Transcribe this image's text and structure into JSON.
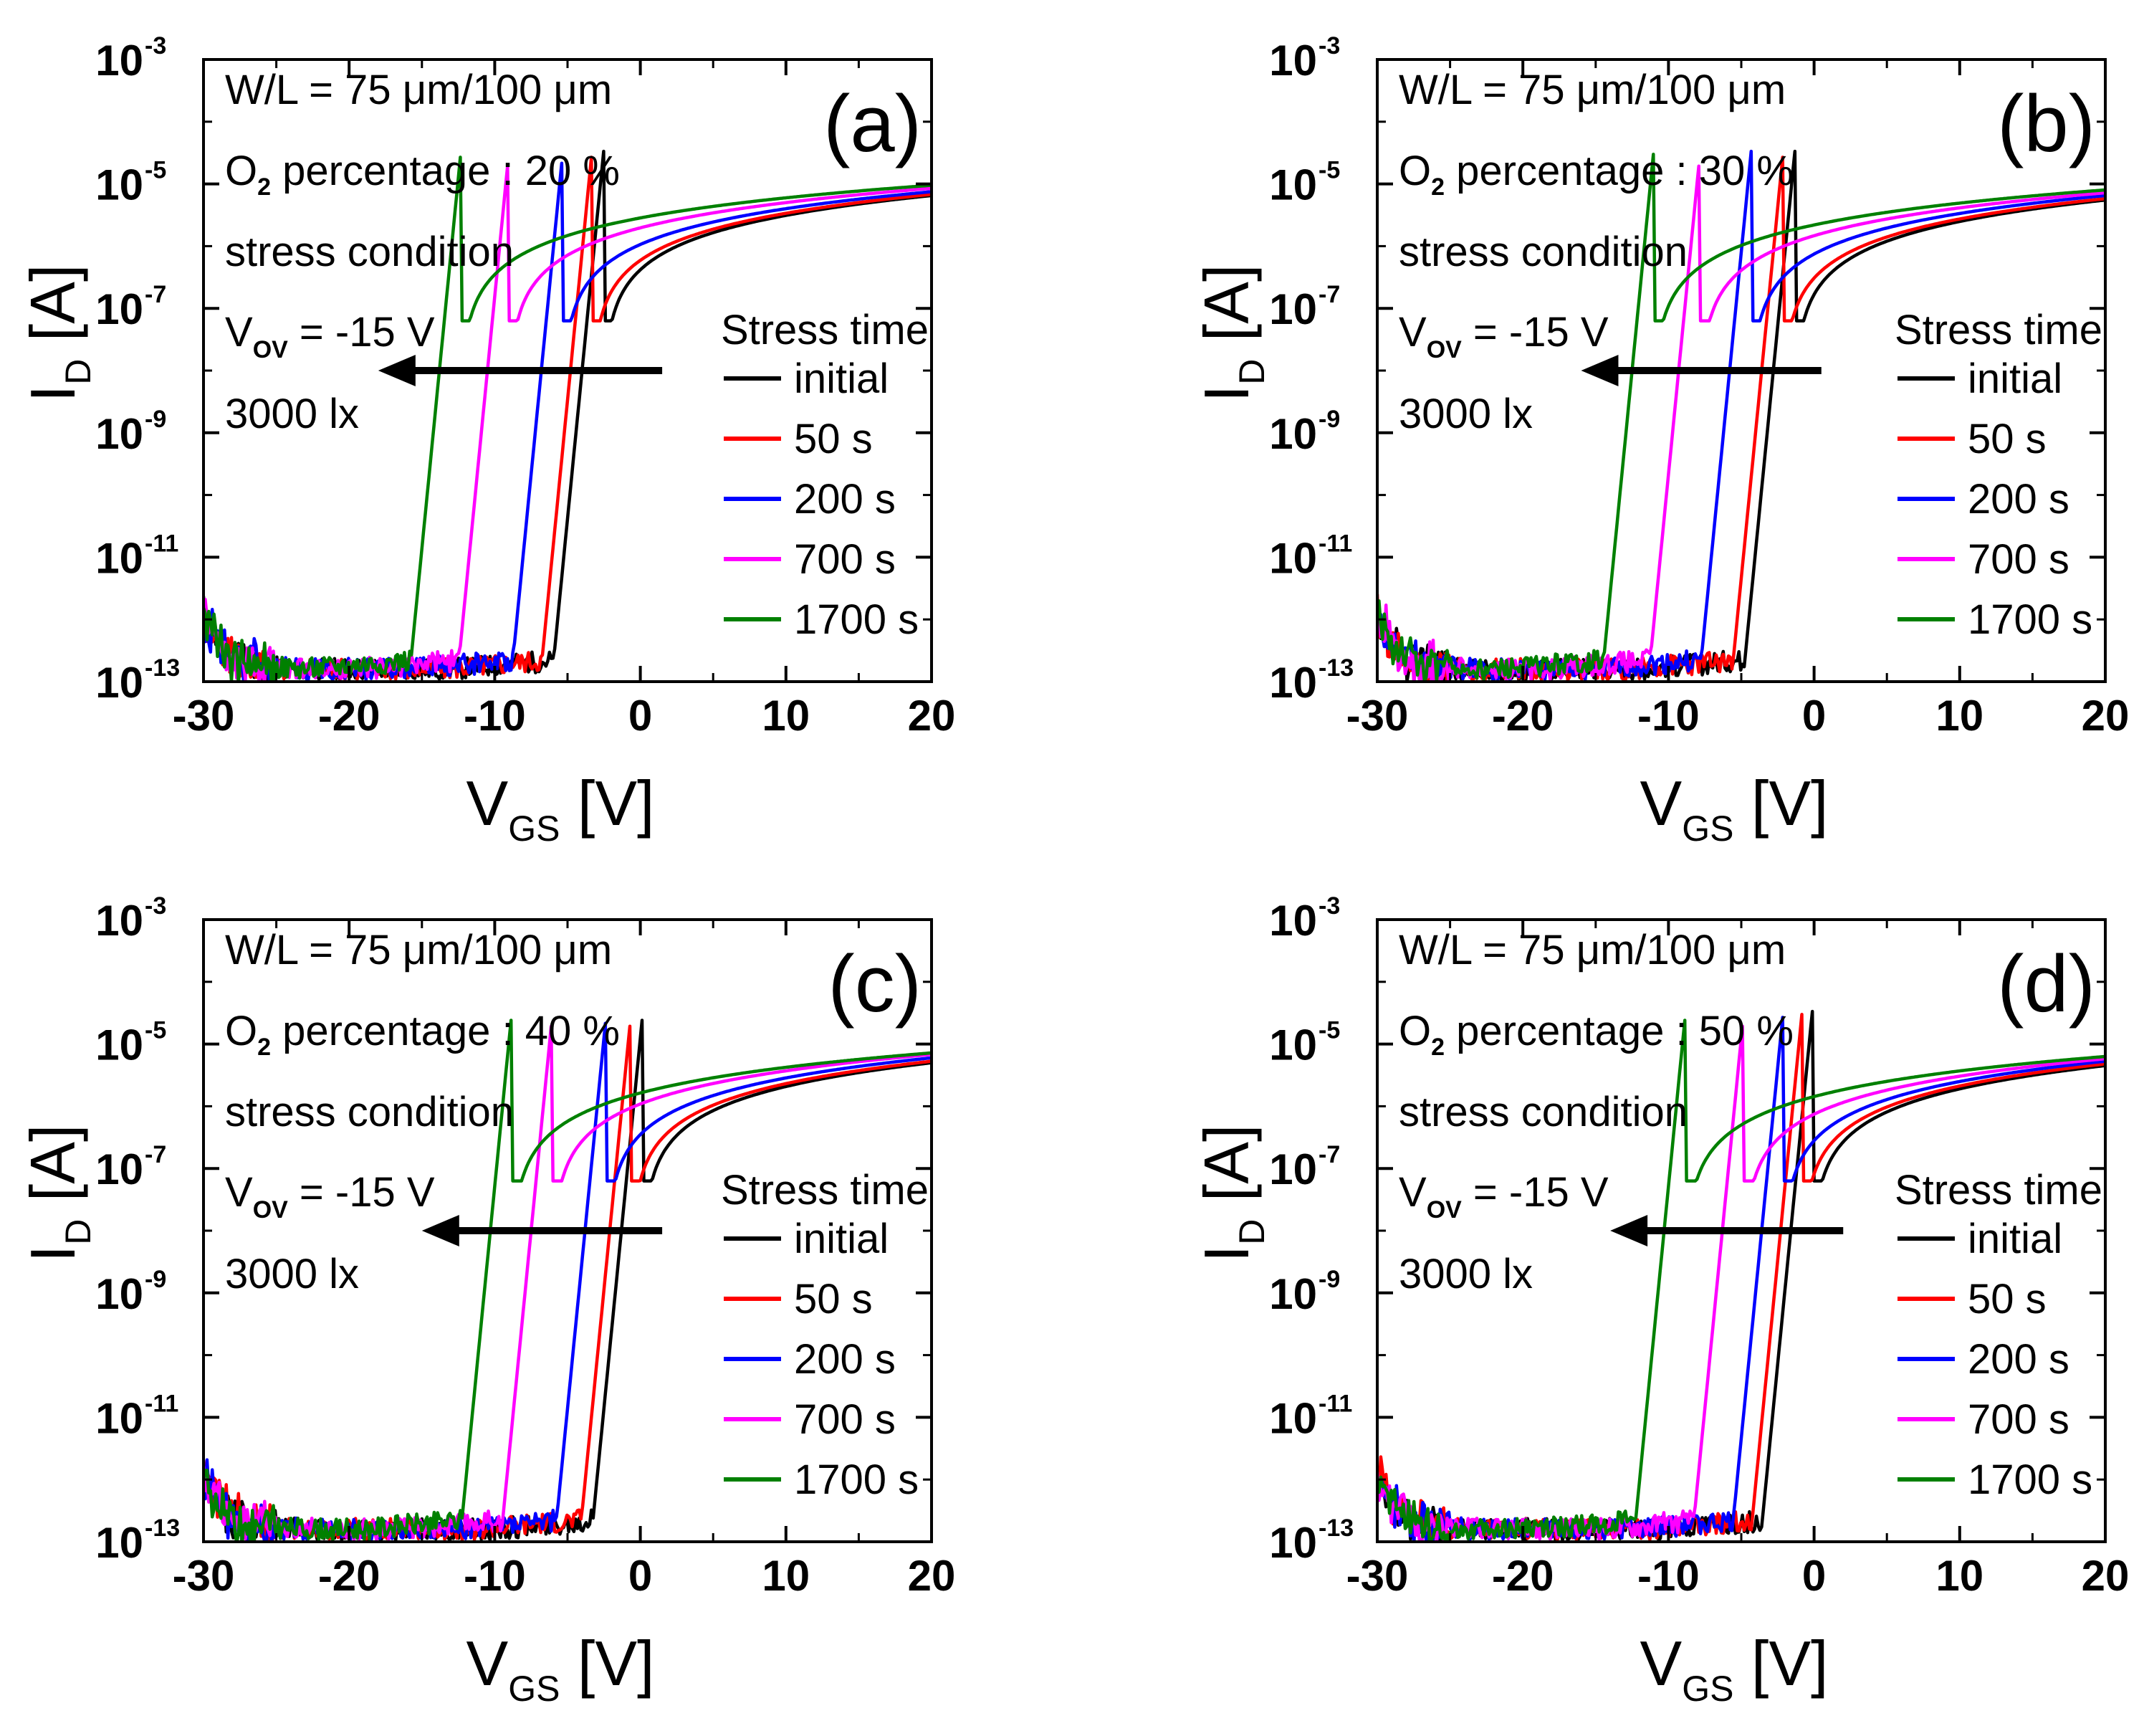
{
  "figure": {
    "panels": [
      {
        "label": "(a)",
        "wl": "W/L = 75 μm/100 μm",
        "o2_prefix": "O",
        "o2_sub": "2",
        "o2_rest": " percentage : 20 %",
        "stress": "stress condition",
        "vov_prefix": "V",
        "vov_sub": "OV",
        "vov_rest": " = -15 V",
        "lux": "3000 lx",
        "legend_title": "Stress time",
        "xlabel_main": "V",
        "xlabel_sub": "GS",
        "xlabel_unit": " [V]",
        "ylabel_main": "I",
        "ylabel_sub": "D",
        "ylabel_unit": " [A]"
      },
      {
        "label": "(b)",
        "wl": "W/L = 75 μm/100 μm",
        "o2_prefix": "O",
        "o2_sub": "2",
        "o2_rest": " percentage : 30 %",
        "stress": "stress condition",
        "vov_prefix": "V",
        "vov_sub": "OV",
        "vov_rest": " = -15 V",
        "lux": "3000 lx",
        "legend_title": "Stress time",
        "xlabel_main": "V",
        "xlabel_sub": "GS",
        "xlabel_unit": " [V]",
        "ylabel_main": "I",
        "ylabel_sub": "D",
        "ylabel_unit": " [A]"
      },
      {
        "label": "(c)",
        "wl": "W/L = 75 μm/100 μm",
        "o2_prefix": "O",
        "o2_sub": "2",
        "o2_rest": " percentage : 40 %",
        "stress": "stress condition",
        "vov_prefix": "V",
        "vov_sub": "OV",
        "vov_rest": " = -15 V",
        "lux": "3000 lx",
        "legend_title": "Stress time",
        "xlabel_main": "V",
        "xlabel_sub": "GS",
        "xlabel_unit": " [V]",
        "ylabel_main": "I",
        "ylabel_sub": "D",
        "ylabel_unit": " [A]"
      },
      {
        "label": "(d)",
        "wl": "W/L = 75 μm/100 μm",
        "o2_prefix": "O",
        "o2_sub": "2",
        "o2_rest": " percentage : 50 %",
        "stress": "stress condition",
        "vov_prefix": "V",
        "vov_sub": "OV",
        "vov_rest": " = -15 V",
        "lux": "3000 lx",
        "legend_title": "Stress time",
        "xlabel_main": "V",
        "xlabel_sub": "GS",
        "xlabel_unit": " [V]",
        "ylabel_main": "I",
        "ylabel_sub": "D",
        "ylabel_unit": " [A]"
      }
    ]
  },
  "chart_data": [
    {
      "type": "line",
      "title": "(a)",
      "xlabel": "VGS [V]",
      "ylabel": "ID [A]",
      "yscale": "log",
      "xlim": [
        -30,
        20
      ],
      "ylim": [
        1e-13,
        0.001
      ],
      "x_ticks": [
        "-30",
        "-20",
        "-10",
        "0",
        "10",
        "20"
      ],
      "x_tick_values": [
        -30,
        -20,
        -10,
        0,
        10,
        20
      ],
      "y_ticks": [
        {
          "base": "10",
          "exp": "-3",
          "value": 0.001
        },
        {
          "base": "10",
          "exp": "-5",
          "value": 1e-05
        },
        {
          "base": "10",
          "exp": "-7",
          "value": 1e-07
        },
        {
          "base": "10",
          "exp": "-9",
          "value": 1e-09
        },
        {
          "base": "10",
          "exp": "-11",
          "value": 1e-11
        },
        {
          "base": "10",
          "exp": "-13",
          "value": 1e-13
        }
      ],
      "arrow": {
        "from_v": 1.5,
        "to_v": -18,
        "at_log_i": -8
      },
      "series": [
        {
          "name": "initial",
          "color": "#000000",
          "vth": -4.0,
          "i_at_20V": 6.5e-06
        },
        {
          "name": "50 s",
          "color": "#ff0000",
          "vth": -4.8,
          "i_at_20V": 6.8e-06
        },
        {
          "name": "200 s",
          "color": "#0000ff",
          "vth": -6.8,
          "i_at_20V": 7.5e-06
        },
        {
          "name": "700 s",
          "color": "#ff00ff",
          "vth": -10.5,
          "i_at_20V": 8.5e-06
        },
        {
          "name": "1700 s",
          "color": "#008000",
          "vth": -13.8,
          "i_at_20V": 9.5e-06
        }
      ]
    },
    {
      "type": "line",
      "title": "(b)",
      "xlabel": "VGS [V]",
      "ylabel": "ID [A]",
      "yscale": "log",
      "xlim": [
        -30,
        20
      ],
      "ylim": [
        1e-13,
        0.001
      ],
      "x_ticks": [
        "-30",
        "-20",
        "-10",
        "0",
        "10",
        "20"
      ],
      "x_tick_values": [
        -30,
        -20,
        -10,
        0,
        10,
        20
      ],
      "y_ticks": [
        {
          "base": "10",
          "exp": "-3",
          "value": 0.001
        },
        {
          "base": "10",
          "exp": "-5",
          "value": 1e-05
        },
        {
          "base": "10",
          "exp": "-7",
          "value": 1e-07
        },
        {
          "base": "10",
          "exp": "-9",
          "value": 1e-09
        },
        {
          "base": "10",
          "exp": "-11",
          "value": 1e-11
        },
        {
          "base": "10",
          "exp": "-13",
          "value": 1e-13
        }
      ],
      "arrow": {
        "from_v": 0.5,
        "to_v": -16,
        "at_log_i": -8
      },
      "series": [
        {
          "name": "initial",
          "color": "#000000",
          "vth": -2.8,
          "i_at_20V": 5.5e-06
        },
        {
          "name": "50 s",
          "color": "#ff0000",
          "vth": -3.6,
          "i_at_20V": 5.8e-06
        },
        {
          "name": "200 s",
          "color": "#0000ff",
          "vth": -5.8,
          "i_at_20V": 6.5e-06
        },
        {
          "name": "700 s",
          "color": "#ff00ff",
          "vth": -9.3,
          "i_at_20V": 7.2e-06
        },
        {
          "name": "1700 s",
          "color": "#008000",
          "vth": -12.5,
          "i_at_20V": 8e-06
        }
      ]
    },
    {
      "type": "line",
      "title": "(c)",
      "xlabel": "VGS [V]",
      "ylabel": "ID [A]",
      "yscale": "log",
      "xlim": [
        -30,
        20
      ],
      "ylim": [
        1e-13,
        0.001
      ],
      "x_ticks": [
        "-30",
        "-20",
        "-10",
        "0",
        "10",
        "20"
      ],
      "x_tick_values": [
        -30,
        -20,
        -10,
        0,
        10,
        20
      ],
      "y_ticks": [
        {
          "base": "10",
          "exp": "-3",
          "value": 0.001
        },
        {
          "base": "10",
          "exp": "-5",
          "value": 1e-05
        },
        {
          "base": "10",
          "exp": "-7",
          "value": 1e-07
        },
        {
          "base": "10",
          "exp": "-9",
          "value": 1e-09
        },
        {
          "base": "10",
          "exp": "-11",
          "value": 1e-11
        },
        {
          "base": "10",
          "exp": "-13",
          "value": 1e-13
        }
      ],
      "arrow": {
        "from_v": 1.5,
        "to_v": -15,
        "at_log_i": -8
      },
      "series": [
        {
          "name": "initial",
          "color": "#000000",
          "vth": -1.3,
          "i_at_20V": 5e-06
        },
        {
          "name": "50 s",
          "color": "#ff0000",
          "vth": -2.1,
          "i_at_20V": 5.3e-06
        },
        {
          "name": "200 s",
          "color": "#0000ff",
          "vth": -3.8,
          "i_at_20V": 6e-06
        },
        {
          "name": "700 s",
          "color": "#ff00ff",
          "vth": -7.5,
          "i_at_20V": 6.8e-06
        },
        {
          "name": "1700 s",
          "color": "#008000",
          "vth": -10.3,
          "i_at_20V": 7.2e-06
        }
      ]
    },
    {
      "type": "line",
      "title": "(d)",
      "xlabel": "VGS [V]",
      "ylabel": "ID [A]",
      "yscale": "log",
      "xlim": [
        -30,
        20
      ],
      "ylim": [
        1e-13,
        0.001
      ],
      "x_ticks": [
        "-30",
        "-20",
        "-10",
        "0",
        "10",
        "20"
      ],
      "x_tick_values": [
        -30,
        -20,
        -10,
        0,
        10,
        20
      ],
      "y_ticks": [
        {
          "base": "10",
          "exp": "-3",
          "value": 0.001
        },
        {
          "base": "10",
          "exp": "-5",
          "value": 1e-05
        },
        {
          "base": "10",
          "exp": "-7",
          "value": 1e-07
        },
        {
          "base": "10",
          "exp": "-9",
          "value": 1e-09
        },
        {
          "base": "10",
          "exp": "-11",
          "value": 1e-11
        },
        {
          "base": "10",
          "exp": "-13",
          "value": 1e-13
        }
      ],
      "arrow": {
        "from_v": 2.0,
        "to_v": -14,
        "at_log_i": -8
      },
      "series": [
        {
          "name": "initial",
          "color": "#000000",
          "vth": -1.6,
          "i_at_20V": 4.5e-06
        },
        {
          "name": "50 s",
          "color": "#ff0000",
          "vth": -2.3,
          "i_at_20V": 4.8e-06
        },
        {
          "name": "200 s",
          "color": "#0000ff",
          "vth": -3.6,
          "i_at_20V": 5.3e-06
        },
        {
          "name": "700 s",
          "color": "#ff00ff",
          "vth": -6.3,
          "i_at_20V": 5.8e-06
        },
        {
          "name": "1700 s",
          "color": "#008000",
          "vth": -10.3,
          "i_at_20V": 6.3e-06
        }
      ]
    }
  ]
}
